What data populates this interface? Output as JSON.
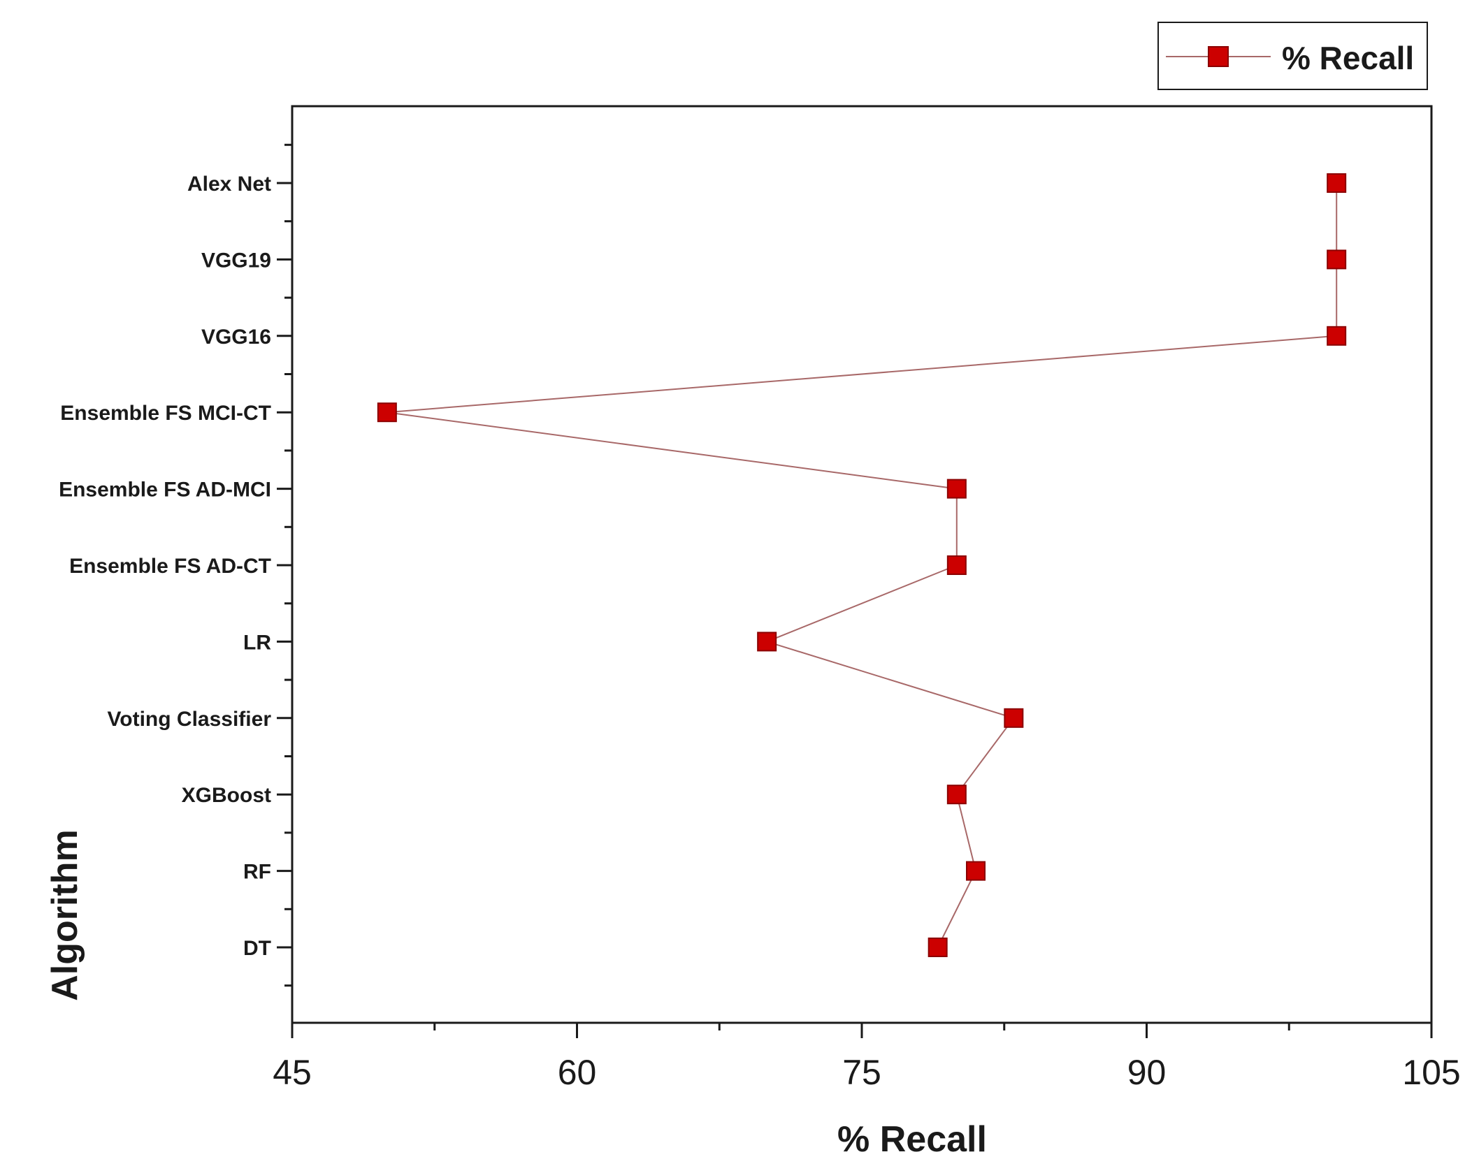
{
  "chart_data": {
    "type": "line",
    "orientation": "horizontal",
    "xlabel": "% Recall",
    "ylabel": "Algorithm",
    "xlim": [
      45,
      105
    ],
    "xticks": [
      45,
      60,
      75,
      90,
      105
    ],
    "categories": [
      "DT",
      "RF",
      "XGBoost",
      "Voting Classifier",
      "LR",
      "Ensemble FS AD-CT",
      "Ensemble FS AD-MCI",
      "Ensemble FS MCI-CT",
      "VGG16",
      "VGG19",
      "Alex Net"
    ],
    "series": [
      {
        "name": "% Recall",
        "values": [
          79,
          81,
          80,
          83,
          70,
          80,
          80,
          50,
          100,
          100,
          100
        ]
      }
    ],
    "legend": {
      "position": "top-right",
      "entries": [
        "% Recall"
      ]
    },
    "colors": {
      "line": "#a86868",
      "marker": "#cc0000",
      "marker_edge": "#8b0000",
      "axis": "#1a1a1a"
    }
  }
}
